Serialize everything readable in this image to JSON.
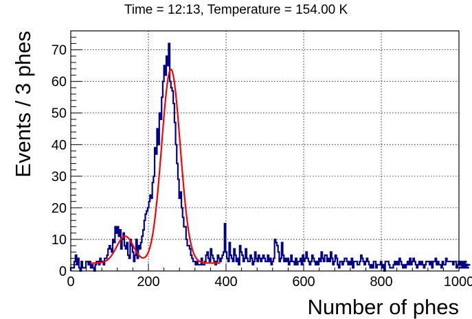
{
  "chart_data": {
    "type": "histogram",
    "title": "Time = 12:13, Temperature = 154.00 K",
    "xlabel": "Number of phes",
    "ylabel": "Events / 3 phes",
    "xlim": [
      0,
      1000
    ],
    "ylim": [
      0,
      76
    ],
    "bin_width": 3,
    "x_ticks": [
      0,
      200,
      400,
      600,
      800,
      1000
    ],
    "x_tick_labels": [
      "0",
      "200",
      "400",
      "600",
      "800",
      "1000"
    ],
    "y_ticks": [
      0,
      10,
      20,
      30,
      40,
      50,
      60,
      70
    ],
    "y_tick_labels": [
      "0",
      "10",
      "20",
      "30",
      "40",
      "50",
      "60",
      "70"
    ],
    "grid": true,
    "histogram_color": "#00008b",
    "fit_color": "#ff0000",
    "counts": [
      1,
      1,
      1,
      3,
      5,
      2,
      4,
      1,
      0,
      3,
      1,
      1,
      1,
      3,
      3,
      2,
      3,
      1,
      2,
      1,
      0,
      2,
      3,
      3,
      2,
      4,
      3,
      3,
      2,
      4,
      4,
      5,
      7,
      8,
      7,
      6,
      10,
      9,
      14,
      12,
      14,
      11,
      13,
      7,
      10,
      12,
      8,
      7,
      9,
      5,
      4,
      10,
      8,
      6,
      3,
      5,
      10,
      4,
      8,
      7,
      9,
      11,
      13,
      16,
      18,
      19,
      20,
      22,
      24,
      23,
      28,
      30,
      39,
      37,
      45,
      40,
      50,
      48,
      55,
      60,
      65,
      62,
      68,
      65,
      72,
      60,
      58,
      57,
      53,
      47,
      40,
      34,
      29,
      23,
      25,
      20,
      17,
      14,
      14,
      10,
      8,
      8,
      7,
      5,
      4,
      3,
      3,
      2,
      3,
      2,
      2,
      2,
      4,
      2,
      2,
      3,
      5,
      6,
      4,
      3,
      7,
      5,
      4,
      3,
      2,
      3,
      5,
      4,
      3,
      4,
      5,
      6,
      15,
      6,
      4,
      3,
      9,
      5,
      4,
      3,
      7,
      5,
      3,
      4,
      2,
      8,
      6,
      5,
      3,
      4,
      7,
      4,
      3,
      3,
      5,
      4,
      2,
      3,
      6,
      4,
      3,
      5,
      4,
      3,
      4,
      5,
      4,
      3,
      3,
      5,
      3,
      4,
      2,
      3,
      4,
      10,
      9,
      8,
      6,
      3,
      4,
      9,
      5,
      3,
      4,
      3,
      4,
      2,
      3,
      5,
      3,
      3,
      2,
      4,
      2,
      3,
      3,
      4,
      2,
      5,
      3,
      4,
      6,
      4,
      3,
      2,
      3,
      5,
      4,
      3,
      2,
      3,
      2,
      4,
      3,
      6,
      4,
      3,
      5,
      5,
      3,
      4,
      3,
      6,
      4,
      2,
      3,
      5,
      4,
      2,
      1,
      3,
      3,
      2,
      3,
      4,
      4,
      3,
      2,
      3,
      2,
      4,
      1,
      3,
      3,
      3,
      2,
      2,
      3,
      5,
      4,
      3,
      2,
      3,
      4,
      3,
      2,
      1,
      2,
      1,
      3,
      3,
      1,
      2,
      2,
      2,
      3,
      1,
      2,
      0,
      3,
      3,
      3,
      2,
      1,
      1,
      1,
      2,
      3,
      2,
      3,
      2,
      4,
      3,
      2,
      1,
      2,
      1,
      2,
      3,
      2,
      4,
      2,
      3,
      4,
      3,
      2,
      1,
      2,
      3,
      2,
      3,
      2,
      1,
      2,
      3,
      3,
      3,
      2,
      3,
      1,
      3,
      3,
      4,
      2,
      3,
      2,
      2,
      1,
      3,
      2,
      2,
      4,
      3,
      3,
      3,
      3,
      3,
      2,
      3,
      3,
      1,
      2,
      3,
      3,
      2,
      3,
      2,
      3,
      2,
      3,
      2,
      1,
      2
    ],
    "fit": {
      "function": "two gaussians",
      "range": [
        50,
        385
      ],
      "peak1": {
        "amplitude": 8.5,
        "mean": 140,
        "sigma": 22
      },
      "peak2": {
        "amplitude": 61.3,
        "mean": 258,
        "sigma": 24
      },
      "baseline": 2.5
    }
  }
}
